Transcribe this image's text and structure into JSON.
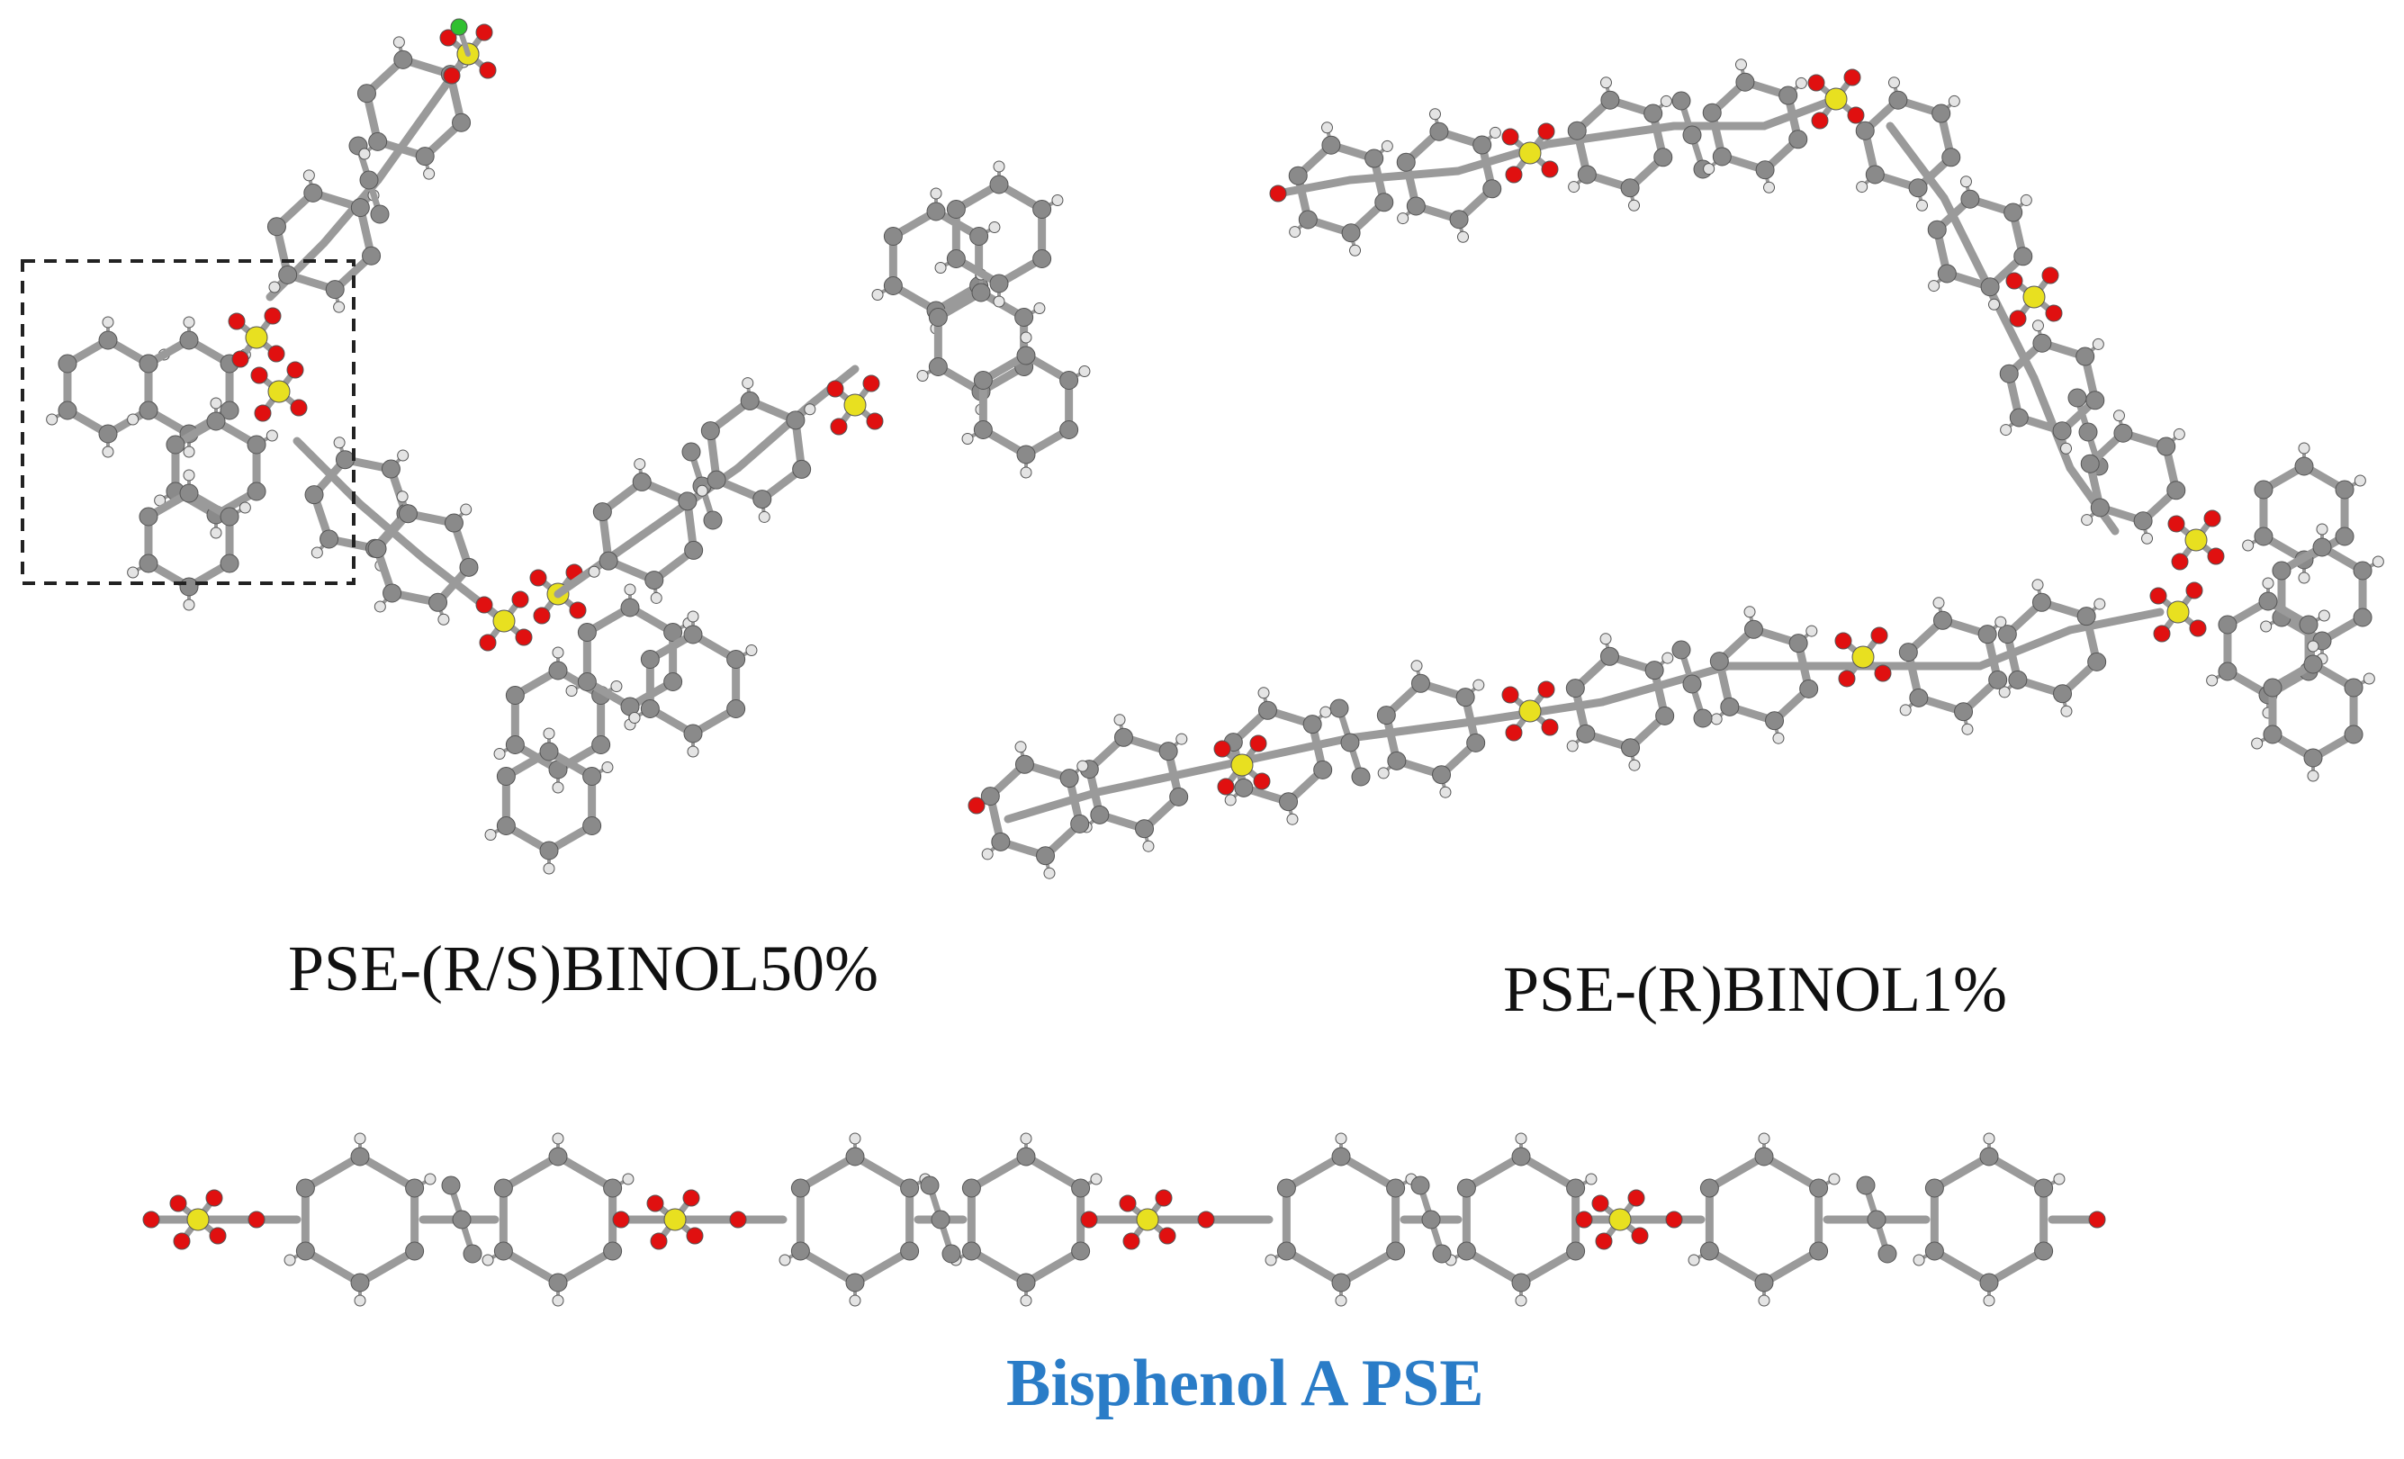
{
  "labels": {
    "left_structure": "PSE-(R/S)BINOL50%",
    "right_structure": "PSE-(R)BINOL1%",
    "bottom_structure": "Bisphenol A PSE"
  },
  "colors": {
    "carbon": "#8a8a8a",
    "bond": "#9a9a9a",
    "hydrogen": "#e4e4e4",
    "oxygen": "#e01010",
    "sulfur": "#e8e020",
    "chlorine": "#30c030",
    "box": "#222222",
    "bottom_label": "#2a7cc7"
  },
  "highlight_box": {
    "style": "dashed"
  }
}
